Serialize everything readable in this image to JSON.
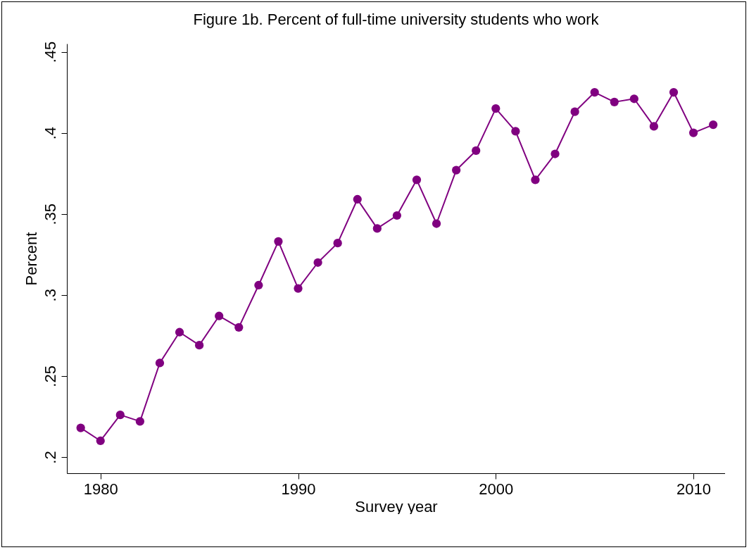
{
  "chart_data": {
    "type": "line",
    "title": "Figure 1b. Percent of full-time university students who work",
    "xlabel": "Survey year",
    "ylabel": "Percent",
    "x": [
      1979,
      1980,
      1981,
      1982,
      1983,
      1984,
      1985,
      1986,
      1987,
      1988,
      1989,
      1990,
      1991,
      1992,
      1993,
      1994,
      1995,
      1996,
      1997,
      1998,
      1999,
      2000,
      2001,
      2002,
      2003,
      2004,
      2005,
      2006,
      2007,
      2008,
      2009,
      2010,
      2011
    ],
    "series": [
      {
        "color": "#800080",
        "values": [
          0.218,
          0.21,
          0.226,
          0.222,
          0.258,
          0.277,
          0.269,
          0.287,
          0.28,
          0.306,
          0.333,
          0.304,
          0.32,
          0.332,
          0.359,
          0.341,
          0.349,
          0.371,
          0.344,
          0.377,
          0.389,
          0.415,
          0.401,
          0.371,
          0.387,
          0.413,
          0.425,
          0.419,
          0.421,
          0.404,
          0.425,
          0.4,
          0.405
        ]
      }
    ],
    "xlim": [
      1978.3,
      2011.6
    ],
    "xticks": [
      1980,
      1990,
      2000,
      2010
    ],
    "ylim": [
      0.19,
      0.455
    ],
    "yticks": [
      {
        "value": 0.2,
        "label": ".2"
      },
      {
        "value": 0.25,
        "label": ".25"
      },
      {
        "value": 0.3,
        "label": ".3"
      },
      {
        "value": 0.35,
        "label": ".35"
      },
      {
        "value": 0.4,
        "label": ".4"
      },
      {
        "value": 0.45,
        "label": ".45"
      }
    ],
    "grid": false,
    "marker": "circle",
    "line_style": "solid"
  }
}
